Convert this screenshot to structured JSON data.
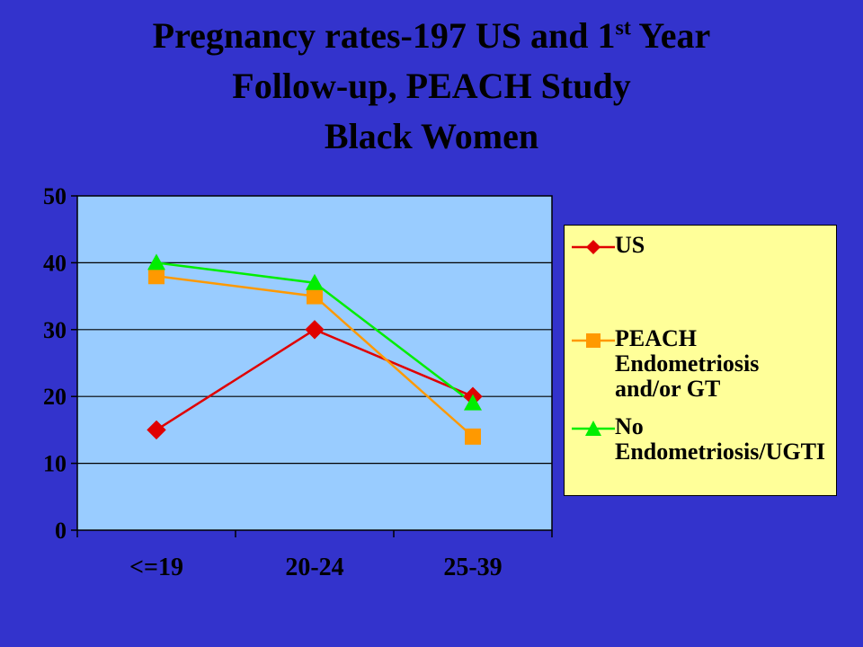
{
  "title": {
    "line1_pre": "Pregnancy rates-197 US and 1",
    "line1_sup": "st",
    "line1_post": " Year",
    "line2": "Follow-up, PEACH Study",
    "line3": "Black Women"
  },
  "colors": {
    "background": "#3333cc",
    "plot_area": "#99ccff",
    "legend_bg": "#ffff99"
  },
  "chart_data": {
    "type": "line",
    "categories": [
      "<=19",
      "20-24",
      "25-39"
    ],
    "ylim": [
      0,
      50
    ],
    "yticks": [
      0,
      10,
      20,
      30,
      40,
      50
    ],
    "grid": true,
    "legend_position": "right",
    "xlabel": "",
    "ylabel": "",
    "series": [
      {
        "name": "US",
        "values": [
          15,
          30,
          20
        ],
        "color": "#e00000",
        "marker": "diamond"
      },
      {
        "name": "PEACH\nEndometriosis\nand/or GT",
        "values": [
          38,
          35,
          14
        ],
        "color": "#ff9900",
        "marker": "square"
      },
      {
        "name": "No\nEndometriosis/UGTI",
        "values": [
          40,
          37,
          19
        ],
        "color": "#00ee00",
        "marker": "triangle"
      }
    ]
  }
}
